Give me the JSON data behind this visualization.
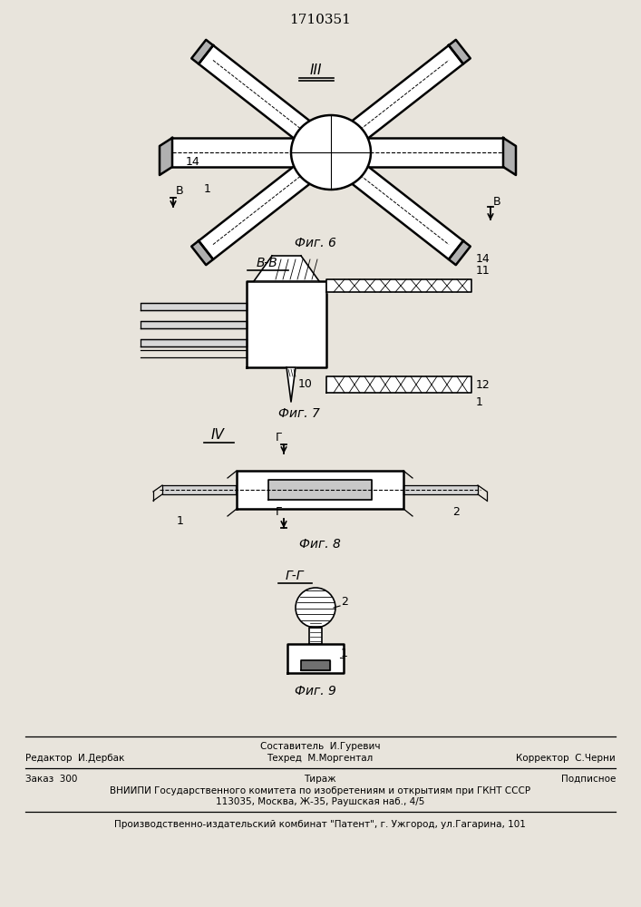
{
  "title": "1710351",
  "bg_color": "#e8e4dc",
  "fig_width": 7.07,
  "fig_height": 10.0,
  "footer_editor": "Редактор  И.Дербак",
  "footer_composer": "Составитель  И.Гуревич",
  "footer_techred": "Техред  М.Моргентал",
  "footer_corrector": "Корректор  С.Черни",
  "footer_order": "Заказ  300",
  "footer_tirazh": "Тираж",
  "footer_podpisnoe": "Подписное",
  "footer_vniipи": "ВНИИПИ Государственного комитета по изобретениям и открытиям при ГКНТ СССР",
  "footer_address": "113035, Москва, Ж-35, Раушская наб., 4/5",
  "footer_patent": "Производственно-издательский комбинат \"Патент\", г. Ужгород, ул.Гагарина, 101"
}
